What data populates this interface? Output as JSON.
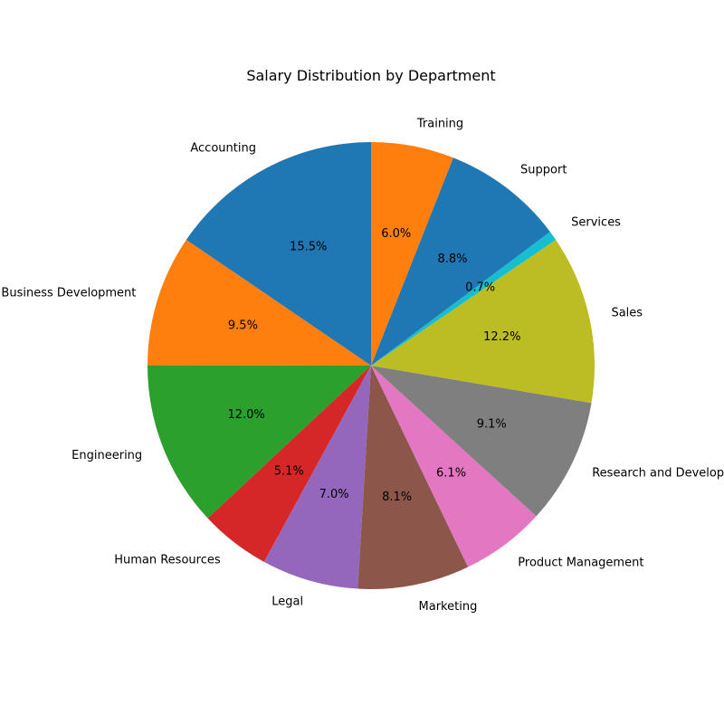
{
  "chart_data": {
    "type": "pie",
    "title": "Salary Distribution by Department",
    "start_angle": 90,
    "direction": "counterclockwise",
    "slices": [
      {
        "label": "Accounting",
        "value": 15.5,
        "pct_text": "15.5%",
        "color": "#1f77b4"
      },
      {
        "label": "Business Development",
        "value": 9.5,
        "pct_text": "9.5%",
        "color": "#ff7f0e"
      },
      {
        "label": "Engineering",
        "value": 12.0,
        "pct_text": "12.0%",
        "color": "#2ca02c"
      },
      {
        "label": "Human Resources",
        "value": 5.1,
        "pct_text": "5.1%",
        "color": "#d62728"
      },
      {
        "label": "Legal",
        "value": 7.0,
        "pct_text": "7.0%",
        "color": "#9467bd"
      },
      {
        "label": "Marketing",
        "value": 8.1,
        "pct_text": "8.1%",
        "color": "#8c564b"
      },
      {
        "label": "Product Management",
        "value": 6.1,
        "pct_text": "6.1%",
        "color": "#e377c2"
      },
      {
        "label": "Research and Development",
        "value": 9.1,
        "pct_text": "9.1%",
        "color": "#7f7f7f"
      },
      {
        "label": "Sales",
        "value": 12.2,
        "pct_text": "12.2%",
        "color": "#bcbd22"
      },
      {
        "label": "Services",
        "value": 0.7,
        "pct_text": "0.7%",
        "color": "#17becf"
      },
      {
        "label": "Support",
        "value": 8.8,
        "pct_text": "8.8%",
        "color": "#1f77b4"
      },
      {
        "label": "Training",
        "value": 6.0,
        "pct_text": "6.0%",
        "color": "#ff7f0e"
      }
    ]
  }
}
